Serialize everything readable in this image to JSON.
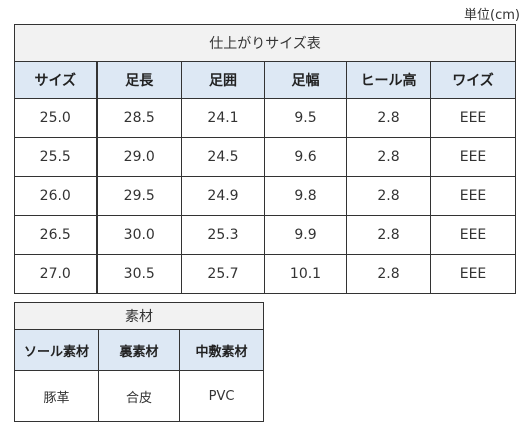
{
  "unit": "単位(cm)",
  "size_table": {
    "title": "仕上がりサイズ表",
    "headers": [
      "サイズ",
      "足長",
      "足囲",
      "足幅",
      "ヒール高",
      "ワイズ"
    ],
    "rows": [
      [
        "25.0",
        "28.5",
        "24.1",
        "9.5",
        "2.8",
        "EEE"
      ],
      [
        "25.5",
        "29.0",
        "24.5",
        "9.6",
        "2.8",
        "EEE"
      ],
      [
        "26.0",
        "29.5",
        "24.9",
        "9.8",
        "2.8",
        "EEE"
      ],
      [
        "26.5",
        "30.0",
        "25.3",
        "9.9",
        "2.8",
        "EEE"
      ],
      [
        "27.0",
        "30.5",
        "25.7",
        "10.1",
        "2.8",
        "EEE"
      ]
    ]
  },
  "material_table": {
    "title": "素材",
    "headers": [
      "ソール素材",
      "裏素材",
      "中敷素材"
    ],
    "values": [
      "豚革",
      "合皮",
      "PVC"
    ]
  }
}
